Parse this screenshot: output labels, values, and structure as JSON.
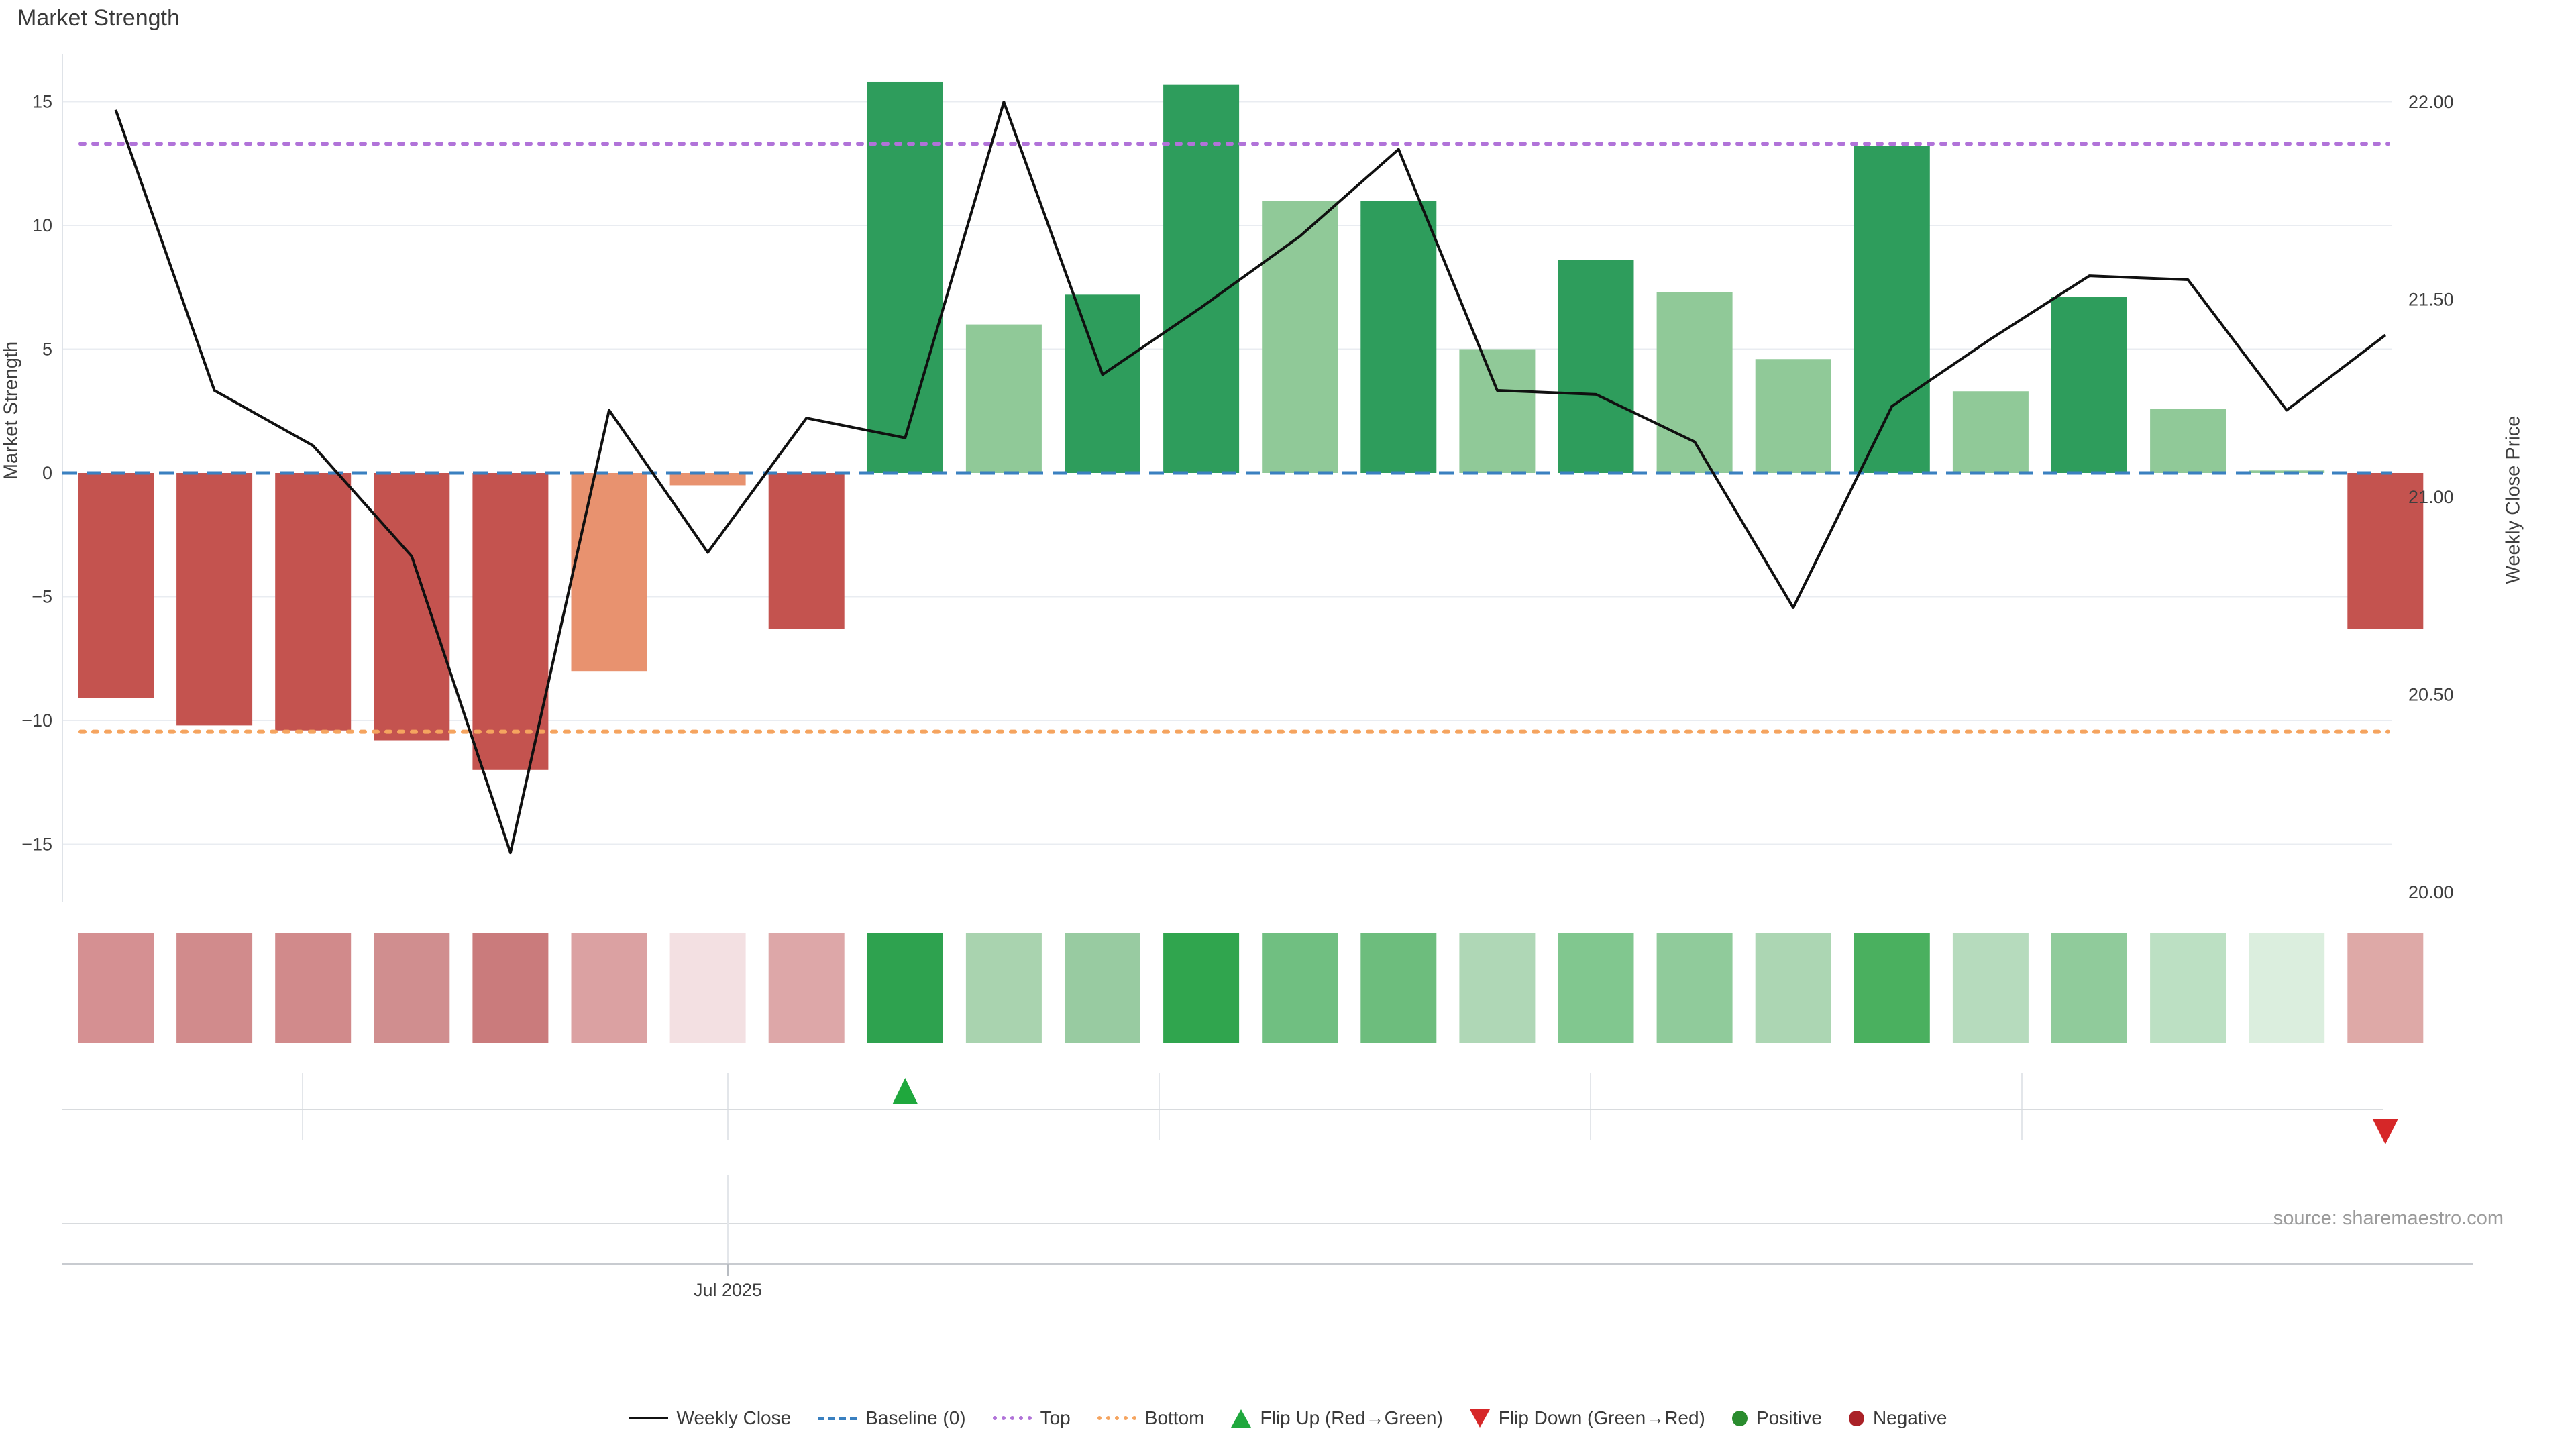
{
  "title": "Market Strength",
  "source": "source: sharemaestro.com",
  "axes": {
    "left": {
      "title": "Market Strength",
      "ticks": [
        {
          "label": "15",
          "v": 15
        },
        {
          "label": "10",
          "v": 10
        },
        {
          "label": "5",
          "v": 5
        },
        {
          "label": "0",
          "v": 0
        },
        {
          "label": "−5",
          "v": -5
        },
        {
          "label": "−10",
          "v": -10
        },
        {
          "label": "−15",
          "v": -15
        }
      ]
    },
    "right": {
      "title": "Weekly Close Price",
      "ticks": [
        {
          "label": "22.00",
          "v": 22.0
        },
        {
          "label": "21.50",
          "v": 21.5
        },
        {
          "label": "21.00",
          "v": 21.0
        },
        {
          "label": "20.50",
          "v": 20.5
        },
        {
          "label": "20.00",
          "v": 20.0
        }
      ]
    },
    "x": {
      "tick_label": "Jul 2025"
    }
  },
  "chart_data": {
    "type": "bar",
    "weeks": 24,
    "x_tick_labels": [
      "Jul 2025"
    ],
    "series": [
      {
        "name": "Market Strength",
        "type": "bar",
        "axis": "left",
        "values": [
          -9.1,
          -10.2,
          -10.4,
          -10.8,
          -12.0,
          -8.0,
          -0.5,
          -6.3,
          15.8,
          6.0,
          7.2,
          15.7,
          11.0,
          11.0,
          5.0,
          8.6,
          7.3,
          4.6,
          13.2,
          3.3,
          7.1,
          2.6,
          0.1,
          -6.3
        ],
        "bar_styles": [
          "neg",
          "neg",
          "neg",
          "neg",
          "neg",
          "neg_light",
          "neg_light",
          "neg",
          "pos_dark",
          "pos_light",
          "pos_dark",
          "pos_dark",
          "pos_light",
          "pos_dark",
          "pos_light",
          "pos_dark",
          "pos_light",
          "pos_light",
          "pos_dark",
          "pos_light",
          "pos_dark",
          "pos_light",
          "pos_light",
          "neg"
        ]
      },
      {
        "name": "Weekly Close",
        "type": "line",
        "axis": "right",
        "values": [
          21.98,
          21.27,
          21.13,
          20.85,
          20.1,
          21.22,
          20.86,
          21.2,
          21.15,
          22.0,
          21.31,
          21.48,
          21.66,
          21.88,
          21.27,
          21.26,
          21.14,
          20.72,
          21.23,
          21.4,
          21.56,
          21.55,
          21.22,
          21.41
        ]
      }
    ],
    "reference_lines": {
      "baseline": 0,
      "top": 13.3,
      "bottom": -10.45
    },
    "heatmap_colors": [
      "#d59092",
      "#d18b8c",
      "#d18a8b",
      "#d08e8f",
      "#ca7b7c",
      "#dba1a2",
      "#f3e0e2",
      "#dda7a8",
      "#2ea24f",
      "#a9d3af",
      "#98cba1",
      "#30a54e",
      "#70bf81",
      "#6dbd7d",
      "#afd7b6",
      "#81c78f",
      "#90cb9b",
      "#acd6b3",
      "#4ab05f",
      "#b6dbbd",
      "#90cb9b",
      "#bce0c3",
      "#dbeede",
      "#dea9a7"
    ],
    "flip_up_week": 9,
    "flip_down_week": 24,
    "ylim_left": [
      -16.5,
      17
    ],
    "ylim_right": [
      19.95,
      22.1
    ],
    "grid": true,
    "legend_position": "bottom"
  },
  "legend": [
    {
      "label": "Weekly Close",
      "marker": "solid-line",
      "color": "#111111"
    },
    {
      "label": "Baseline (0)",
      "marker": "dashed-line",
      "color": "#3a80c0"
    },
    {
      "label": "Top",
      "marker": "dotted-line",
      "color": "#b173d9"
    },
    {
      "label": "Bottom",
      "marker": "dotted-line",
      "color": "#f5a45f"
    },
    {
      "label": "Flip Up (Red→Green)",
      "marker": "triangle-up",
      "color": "#1fa83d"
    },
    {
      "label": "Flip Down (Green→Red)",
      "marker": "triangle-down",
      "color": "#d62728"
    },
    {
      "label": "Positive",
      "marker": "circle",
      "color": "#2a8c2e"
    },
    {
      "label": "Negative",
      "marker": "circle",
      "color": "#aa2127"
    }
  ],
  "colors": {
    "neg": "#c4534f",
    "neg_light": "#e8926f",
    "pos_dark": "#2e9d5c",
    "pos_light": "#90c998",
    "line": "#101010",
    "baseline": "#3a80c0",
    "top_line": "#b173d9",
    "bottom_line": "#f5a45f",
    "flip_up": "#1fa83d",
    "flip_down": "#d62728",
    "grid": "#e9ecf1",
    "axis_line": "#c8cbd0",
    "tick_text": "#3f3f3f"
  }
}
